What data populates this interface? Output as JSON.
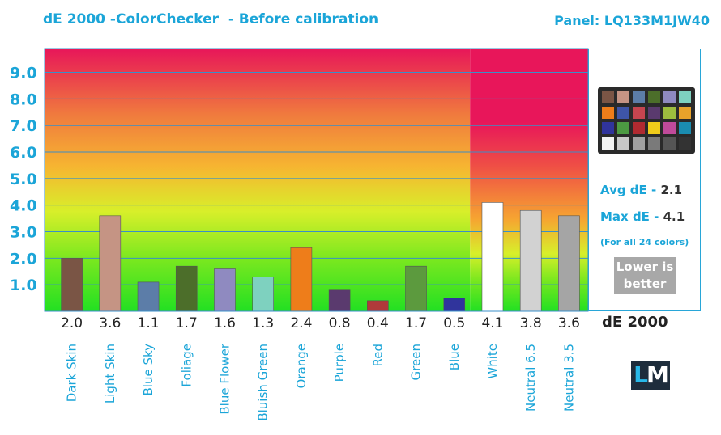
{
  "header": {
    "title": "dE 2000 -ColorChecker  - Before calibration",
    "panel": "Panel: LQ133M1JW40"
  },
  "colors": {
    "accent": "#1ba5d8",
    "tick_label": "#1ba5d8",
    "value_label": "#222222"
  },
  "chart_data": {
    "type": "bar",
    "categories": [
      "Dark Skin",
      "Light Skin",
      "Blue Sky",
      "Foliage",
      "Blue Flower",
      "Bluish Green",
      "Orange",
      "Purple",
      "Red",
      "Green",
      "Blue",
      "White",
      "Neutral 6.5",
      "Neutral 3.5"
    ],
    "values": [
      2.0,
      3.6,
      1.1,
      1.7,
      1.6,
      1.3,
      2.4,
      0.8,
      0.4,
      1.7,
      0.5,
      4.1,
      3.8,
      3.6
    ],
    "value_labels": [
      "2.0",
      "3.6",
      "1.1",
      "1.7",
      "1.6",
      "1.3",
      "2.4",
      "0.8",
      "0.4",
      "1.7",
      "0.5",
      "4.1",
      "3.8",
      "3.6"
    ],
    "bar_colors": [
      "#7a5545",
      "#c59484",
      "#5c7da8",
      "#4c6e2a",
      "#8f8ac0",
      "#7ed1bf",
      "#ee7d1a",
      "#5a3a6e",
      "#b03a3a",
      "#5c9a3e",
      "#30349c",
      "#ffffff",
      "#d2d2d2",
      "#a5a5a5"
    ],
    "y_ticks": [
      "1.0",
      "2.0",
      "3.0",
      "4.0",
      "5.0",
      "6.0",
      "7.0",
      "8.0",
      "9.0"
    ],
    "y_tick_values": [
      1,
      2,
      3,
      4,
      5,
      6,
      7,
      8,
      9
    ],
    "ylim": [
      0,
      9.9
    ],
    "xlabel": "",
    "ylabel": "",
    "grid": true,
    "background": "gradient green (0) to red (9+)"
  },
  "side_panel": {
    "avg_label": "Avg dE - ",
    "avg_value": "2.1",
    "max_label": "Max dE - ",
    "max_value": "4.1",
    "note": "(For all 24 colors)",
    "lower_line1": "Lower is",
    "lower_line2": "better",
    "metric": "dE 2000",
    "logo_l": "L",
    "logo_m": "M"
  },
  "checker_colors": [
    "#7a5545",
    "#c59484",
    "#5c7da8",
    "#4c6e2a",
    "#8f8ac0",
    "#7ed1bf",
    "#ee7d1a",
    "#3e55a8",
    "#c5454f",
    "#5a3a6e",
    "#9dbd3e",
    "#e8a22a",
    "#30349c",
    "#4c9a42",
    "#b02a30",
    "#efcb1a",
    "#c04a9a",
    "#1a8cb0",
    "#f2f2f2",
    "#c8c8c8",
    "#a0a0a0",
    "#7a7a7a",
    "#555555",
    "#333333"
  ]
}
